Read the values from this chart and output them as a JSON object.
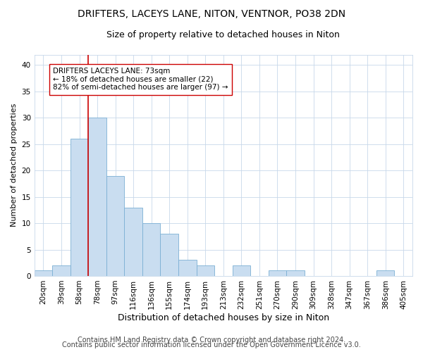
{
  "title1": "DRIFTERS, LACEYS LANE, NITON, VENTNOR, PO38 2DN",
  "title2": "Size of property relative to detached houses in Niton",
  "xlabel": "Distribution of detached houses by size in Niton",
  "ylabel": "Number of detached properties",
  "categories": [
    "20sqm",
    "39sqm",
    "58sqm",
    "78sqm",
    "97sqm",
    "116sqm",
    "136sqm",
    "155sqm",
    "174sqm",
    "193sqm",
    "213sqm",
    "232sqm",
    "251sqm",
    "270sqm",
    "290sqm",
    "309sqm",
    "328sqm",
    "347sqm",
    "367sqm",
    "386sqm",
    "405sqm"
  ],
  "values": [
    1,
    2,
    26,
    30,
    19,
    13,
    10,
    8,
    3,
    2,
    0,
    2,
    0,
    1,
    1,
    0,
    0,
    0,
    0,
    1,
    0
  ],
  "bar_color": "#c9ddf0",
  "bar_edge_color": "#7bafd4",
  "vline_color": "#cc0000",
  "vline_x_index": 2.5,
  "annotation_text": "DRIFTERS LACEYS LANE: 73sqm\n← 18% of detached houses are smaller (22)\n82% of semi-detached houses are larger (97) →",
  "annotation_box_color": "white",
  "annotation_box_edge": "#cc0000",
  "ylim": [
    0,
    42
  ],
  "yticks": [
    0,
    5,
    10,
    15,
    20,
    25,
    30,
    35,
    40
  ],
  "footer1": "Contains HM Land Registry data © Crown copyright and database right 2024.",
  "footer2": "Contains public sector information licensed under the Open Government Licence v3.0.",
  "title1_fontsize": 10,
  "title2_fontsize": 9,
  "xlabel_fontsize": 9,
  "ylabel_fontsize": 8,
  "tick_fontsize": 7.5,
  "annotation_fontsize": 7.5,
  "footer_fontsize": 7
}
